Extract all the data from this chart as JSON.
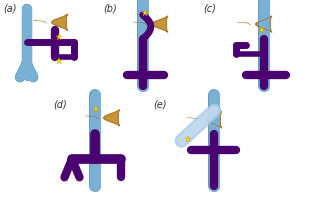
{
  "liver_color": "#c8943a",
  "liver_edge_color": "#a07020",
  "portal_color": "#4a0070",
  "vena_color": "#7ab0d4",
  "vena_edge_color": "#5090b0",
  "star_color": "#ffe000",
  "bg_color": "#ffffff",
  "label_color": "#333333",
  "labels": [
    "(a)",
    "(b)",
    "(c)",
    "(d)",
    "(e)"
  ],
  "label_fontsize": 7,
  "hepatic_line_color": "#8b5a2b"
}
